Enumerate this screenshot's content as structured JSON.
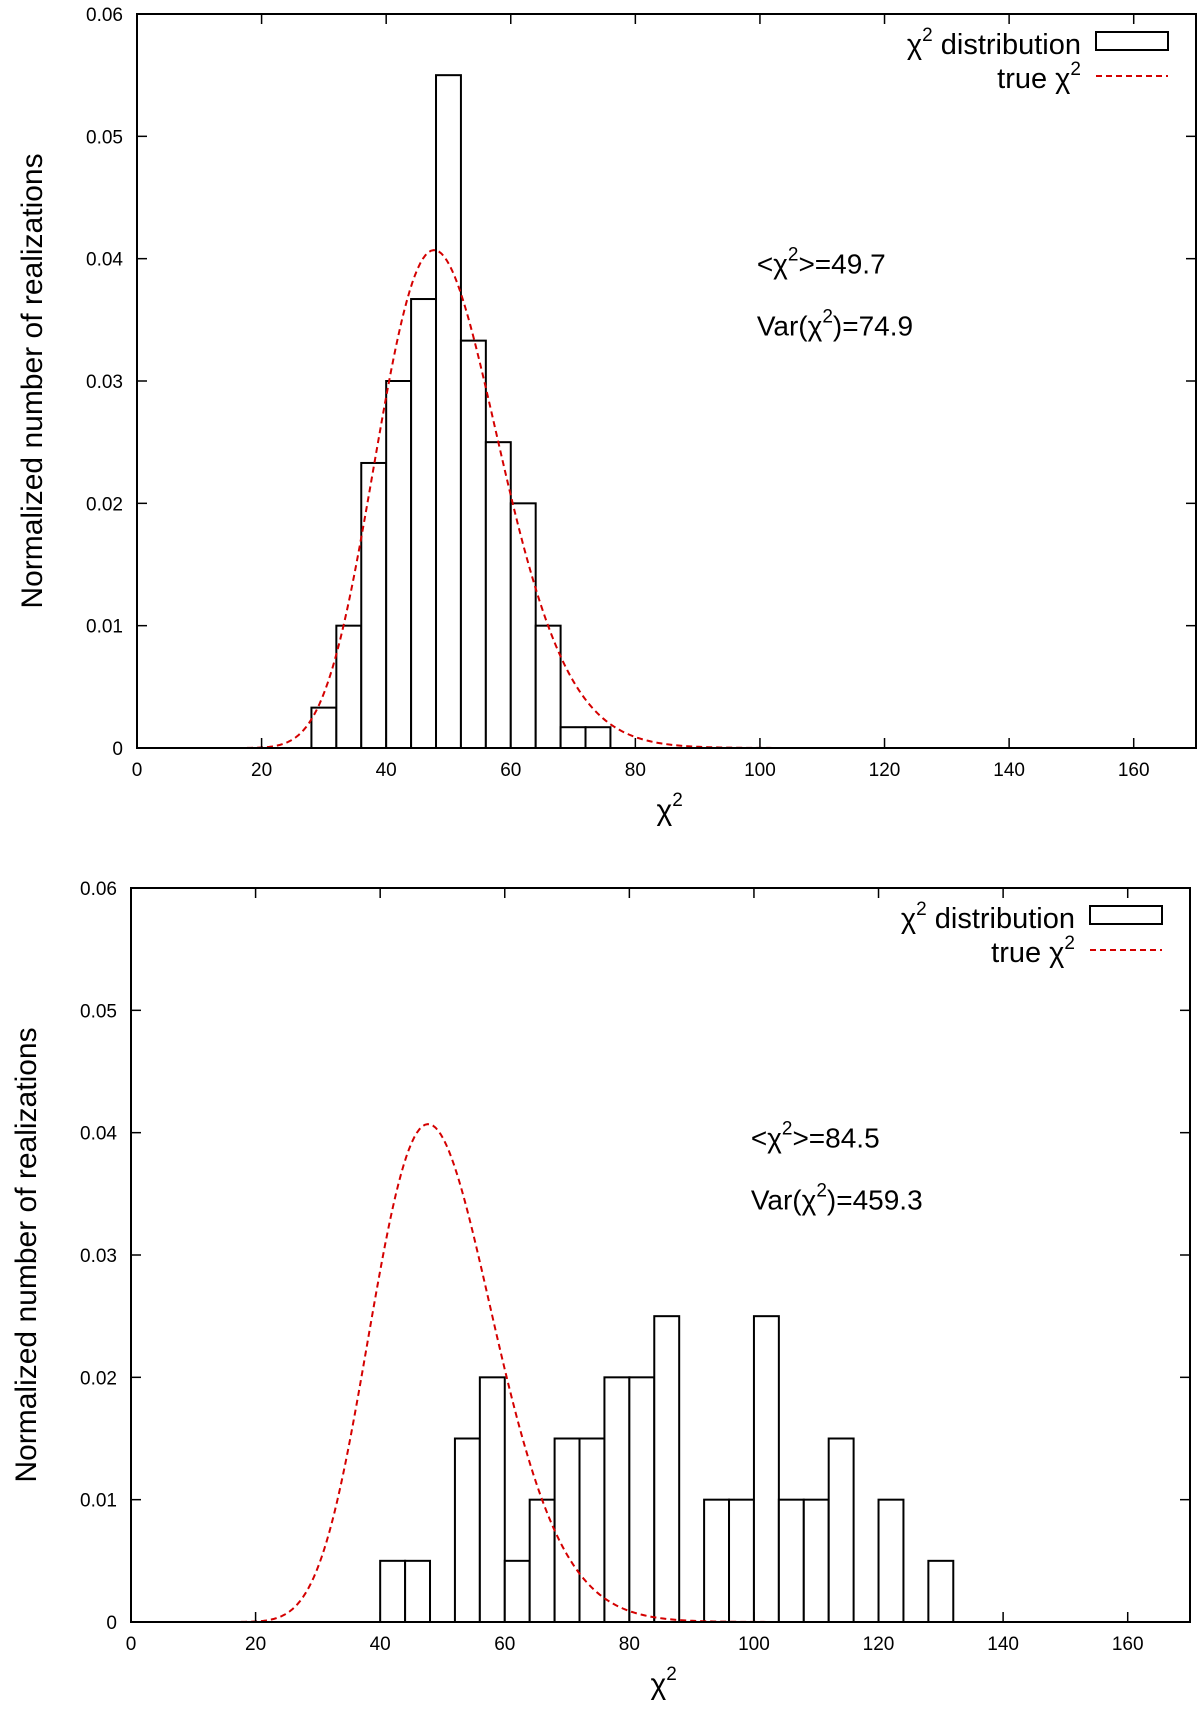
{
  "chart_data": [
    {
      "type": "bar",
      "title": "",
      "xlabel": "χ",
      "xlabel_sup": "2",
      "ylabel": "Normalized number of realizations",
      "xlim": [
        0,
        170
      ],
      "ylim": [
        0,
        0.06
      ],
      "xticks": [
        "0",
        "20",
        "40",
        "60",
        "80",
        "100",
        "120",
        "140",
        "160"
      ],
      "yticks": [
        "0",
        "0.01",
        "0.02",
        "0.03",
        "0.04",
        "0.05",
        "0.06"
      ],
      "legend_position": "top-right",
      "legend": [
        {
          "base": "χ",
          "sup": "2",
          "text": " distribution",
          "style": "box"
        },
        {
          "base": "true χ",
          "sup": "2",
          "text": "",
          "style": "dashed-red"
        }
      ],
      "annotations": [
        {
          "pre": "<χ",
          "sup": "2",
          "post": ">=49.7"
        },
        {
          "pre": "Var(χ",
          "sup": "2",
          "post": ")=74.9"
        }
      ],
      "series": [
        {
          "kind": "histogram",
          "bin_width": 4,
          "bin_starts": [
            28,
            32,
            36,
            40,
            44,
            48,
            52,
            56,
            60,
            64,
            68,
            72
          ],
          "values": [
            0.0033,
            0.01,
            0.0233,
            0.03,
            0.0367,
            0.055,
            0.0333,
            0.025,
            0.02,
            0.01,
            0.0017,
            0.0017
          ]
        },
        {
          "kind": "curve",
          "dof": 49.7,
          "x_range": [
            0,
            170
          ]
        }
      ]
    },
    {
      "type": "bar",
      "title": "",
      "xlabel": "χ",
      "xlabel_sup": "2",
      "ylabel": "Normalized number of realizations",
      "xlim": [
        0,
        170
      ],
      "ylim": [
        0,
        0.06
      ],
      "xticks": [
        "0",
        "20",
        "40",
        "60",
        "80",
        "100",
        "120",
        "140",
        "160"
      ],
      "yticks": [
        "0",
        "0.01",
        "0.02",
        "0.03",
        "0.04",
        "0.05",
        "0.06"
      ],
      "legend_position": "top-right",
      "legend": [
        {
          "base": "χ",
          "sup": "2",
          "text": " distribution",
          "style": "box"
        },
        {
          "base": "true χ",
          "sup": "2",
          "text": "",
          "style": "dashed-red"
        }
      ],
      "annotations": [
        {
          "pre": "<χ",
          "sup": "2",
          "post": ">=84.5"
        },
        {
          "pre": "Var(χ",
          "sup": "2",
          "post": ")=459.3"
        }
      ],
      "series": [
        {
          "kind": "histogram",
          "bin_width": 4,
          "bin_starts": [
            40,
            44,
            52,
            56,
            60,
            64,
            68,
            72,
            76,
            80,
            84,
            92,
            96,
            100,
            104,
            108,
            112,
            120,
            128
          ],
          "values": [
            0.005,
            0.005,
            0.015,
            0.02,
            0.005,
            0.01,
            0.015,
            0.015,
            0.02,
            0.02,
            0.025,
            0.01,
            0.01,
            0.025,
            0.01,
            0.01,
            0.015,
            0.01,
            0.005
          ]
        },
        {
          "kind": "curve",
          "dof": 49.7,
          "x_range": [
            0,
            170
          ]
        }
      ]
    }
  ],
  "colors": {
    "bar_stroke": "#000000",
    "bar_fill": "#ffffff",
    "curve": "#d40000",
    "axis": "#000000"
  }
}
